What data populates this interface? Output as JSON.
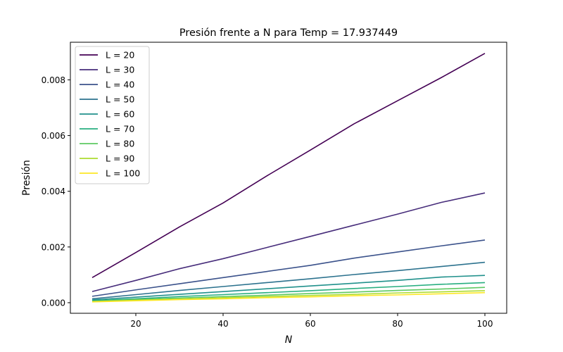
{
  "chart_data": {
    "type": "line",
    "title": "Presión frente a N para Temp = 17.937449",
    "xlabel": "N",
    "ylabel": "Presión",
    "xlim": [
      5,
      105
    ],
    "ylim": [
      -0.00038,
      0.00935
    ],
    "xticks": [
      20,
      40,
      60,
      80,
      100
    ],
    "yticks": [
      0.0,
      0.002,
      0.004,
      0.006,
      0.008
    ],
    "ytick_labels": [
      "0.000",
      "0.002",
      "0.004",
      "0.006",
      "0.008"
    ],
    "grid": false,
    "legend_position": "top-left",
    "x": [
      10,
      20,
      30,
      40,
      50,
      60,
      70,
      80,
      90,
      100
    ],
    "series": [
      {
        "name": "L = 20",
        "color": "#440154",
        "values": [
          0.0009,
          0.0018,
          0.00272,
          0.00358,
          0.00455,
          0.00548,
          0.00642,
          0.00725,
          0.00808,
          0.00895
        ]
      },
      {
        "name": "L = 30",
        "color": "#472d7b",
        "values": [
          0.0004,
          0.0008,
          0.00122,
          0.00158,
          0.00198,
          0.00238,
          0.00278,
          0.00318,
          0.0036,
          0.00394
        ]
      },
      {
        "name": "L = 40",
        "color": "#3b528b",
        "values": [
          0.00023,
          0.00046,
          0.00068,
          0.0009,
          0.00112,
          0.00134,
          0.0016,
          0.00182,
          0.00204,
          0.00225
        ]
      },
      {
        "name": "L = 50",
        "color": "#2c728e",
        "values": [
          0.00014,
          0.00029,
          0.00044,
          0.00058,
          0.00072,
          0.00086,
          0.00101,
          0.00115,
          0.0013,
          0.00145
        ]
      },
      {
        "name": "L = 60",
        "color": "#21918c",
        "values": [
          0.0001,
          0.0002,
          0.0003,
          0.0004,
          0.0005,
          0.0006,
          0.0007,
          0.0008,
          0.00092,
          0.00098
        ]
      },
      {
        "name": "L = 70",
        "color": "#28ae80",
        "values": [
          7e-05,
          0.00014,
          0.00022,
          0.00029,
          0.00036,
          0.00043,
          0.00051,
          0.00058,
          0.00066,
          0.00072
        ]
      },
      {
        "name": "L = 80",
        "color": "#5ec962",
        "values": [
          5e-05,
          0.00011,
          0.00017,
          0.00022,
          0.00027,
          0.00033,
          0.00038,
          0.00044,
          0.00049,
          0.00055
        ]
      },
      {
        "name": "L = 90",
        "color": "#addc30",
        "values": [
          4e-05,
          9e-05,
          0.00013,
          0.00018,
          0.00022,
          0.00026,
          0.0003,
          0.00035,
          0.00039,
          0.00043
        ]
      },
      {
        "name": "L = 100",
        "color": "#fde725",
        "values": [
          3e-05,
          7e-05,
          0.00011,
          0.00014,
          0.00018,
          0.00021,
          0.00025,
          0.00028,
          0.00032,
          0.00036
        ]
      }
    ]
  }
}
